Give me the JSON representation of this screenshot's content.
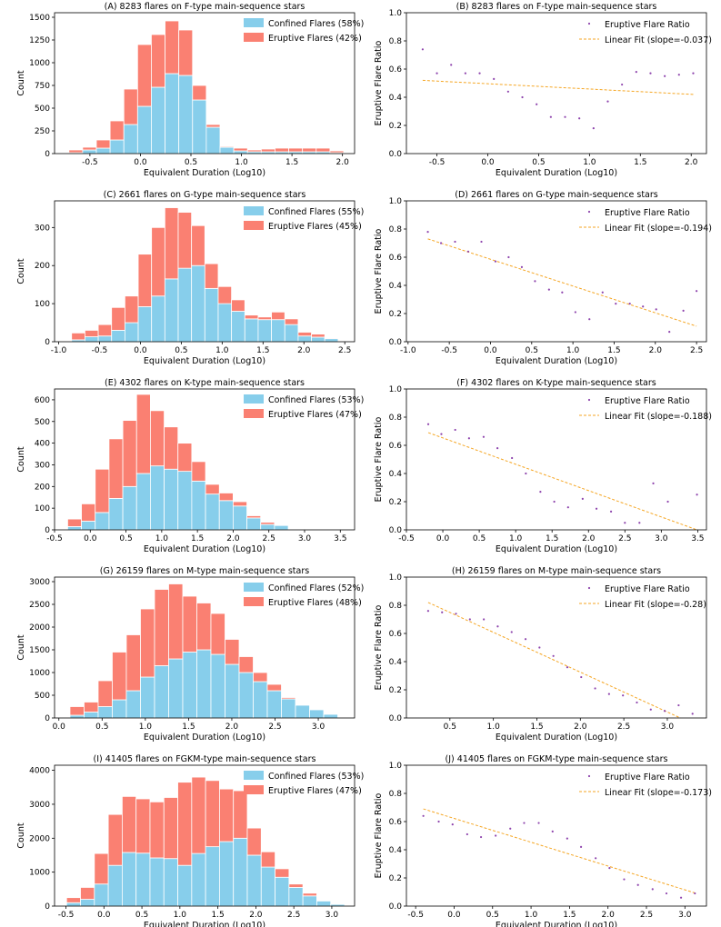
{
  "chart_data": [
    {
      "type": "bar",
      "stacked": true,
      "title": "(A) 8283 flares on F-type main-sequence stars",
      "xlabel": "Equivalent Duration (Log10)",
      "ylabel": "Count",
      "xlim": [
        -0.85,
        2.12
      ],
      "ylim": [
        0,
        1550
      ],
      "xticks": [
        -0.5,
        0.0,
        0.5,
        1.0,
        1.5,
        2.0
      ],
      "xtick_labels": [
        "-0.5",
        "0.0",
        "0.5",
        "1.0",
        "1.5",
        "2.0"
      ],
      "yticks": [
        0,
        250,
        500,
        750,
        1000,
        1250,
        1500
      ],
      "ytick_labels": [
        "0",
        "250",
        "500",
        "750",
        "1000",
        "1250",
        "1500"
      ],
      "bin_width": 0.136,
      "bin_centers": [
        -0.64,
        -0.504,
        -0.368,
        -0.232,
        -0.096,
        0.04,
        0.176,
        0.312,
        0.448,
        0.584,
        0.72,
        0.856,
        0.992,
        1.128,
        1.264,
        1.4,
        1.536,
        1.672,
        1.808,
        1.944
      ],
      "series": [
        {
          "name": "Confined Flares (58%)",
          "color": "#87CEEB",
          "values": [
            10,
            40,
            60,
            150,
            320,
            520,
            730,
            880,
            860,
            590,
            290,
            70,
            30,
            20,
            20,
            20,
            20,
            20,
            20,
            10
          ]
        },
        {
          "name": "Eruptive Flares (42%)",
          "color": "#FA8072",
          "values": [
            30,
            30,
            90,
            210,
            390,
            680,
            580,
            580,
            500,
            160,
            30,
            10,
            30,
            20,
            30,
            40,
            40,
            40,
            40,
            20
          ]
        }
      ],
      "legend": "top-right"
    },
    {
      "type": "scatter",
      "title": "(B) 8283 flares on F-type main-sequence stars",
      "xlabel": "Equivalent Duration (Log10)",
      "ylabel": "Eruptive Flare Ratio",
      "xlim": [
        -0.8,
        2.15
      ],
      "ylim": [
        0,
        1.0
      ],
      "xticks": [
        -0.5,
        0.0,
        0.5,
        1.0,
        1.5,
        2.0
      ],
      "xtick_labels": [
        "-0.5",
        "0.0",
        "0.5",
        "1.0",
        "1.5",
        "2.0"
      ],
      "yticks": [
        0,
        0.2,
        0.4,
        0.6,
        0.8,
        1.0
      ],
      "ytick_labels": [
        "0.0",
        "0.2",
        "0.4",
        "0.6",
        "0.8",
        "1.0"
      ],
      "points": {
        "x": [
          -0.64,
          -0.5,
          -0.36,
          -0.22,
          -0.08,
          0.06,
          0.2,
          0.34,
          0.48,
          0.62,
          0.76,
          0.9,
          1.04,
          1.18,
          1.32,
          1.46,
          1.6,
          1.74,
          1.88,
          2.02
        ],
        "y": [
          0.74,
          0.57,
          0.63,
          0.57,
          0.57,
          0.53,
          0.44,
          0.4,
          0.35,
          0.26,
          0.26,
          0.25,
          0.18,
          0.37,
          0.49,
          0.58,
          0.57,
          0.55,
          0.56,
          0.57
        ]
      },
      "fit": {
        "x": [
          -0.64,
          2.02
        ],
        "y": [
          0.52,
          0.42
        ]
      },
      "legend_labels": [
        "Eruptive Flare Ratio",
        "Linear Fit (slope=-0.037)"
      ],
      "legend": "top-right"
    },
    {
      "type": "bar",
      "stacked": true,
      "title": "(C) 2661 flares on G-type main-sequence stars",
      "xlabel": "Equivalent Duration (Log10)",
      "ylabel": "Count",
      "xlim": [
        -1.05,
        2.62
      ],
      "ylim": [
        0,
        370
      ],
      "xticks": [
        -1.0,
        -0.5,
        0.0,
        0.5,
        1.0,
        1.5,
        2.0,
        2.5
      ],
      "xtick_labels": [
        "-1.0",
        "-0.5",
        "0.0",
        "0.5",
        "1.0",
        "1.5",
        "2.0",
        "2.5"
      ],
      "yticks": [
        0,
        100,
        200,
        300
      ],
      "ytick_labels": [
        "0",
        "100",
        "200",
        "300"
      ],
      "bin_width": 0.163,
      "bin_centers": [
        -0.76,
        -0.597,
        -0.434,
        -0.271,
        -0.108,
        0.055,
        0.218,
        0.381,
        0.544,
        0.707,
        0.87,
        1.033,
        1.196,
        1.359,
        1.522,
        1.685,
        1.848,
        2.011,
        2.174,
        2.337
      ],
      "series": [
        {
          "name": "Confined Flares (55%)",
          "color": "#87CEEB",
          "values": [
            5,
            13,
            15,
            30,
            50,
            92,
            120,
            165,
            193,
            200,
            140,
            100,
            80,
            60,
            58,
            58,
            45,
            15,
            12,
            8
          ]
        },
        {
          "name": "Eruptive Flares (45%)",
          "color": "#FA8072",
          "values": [
            18,
            17,
            30,
            60,
            70,
            138,
            180,
            187,
            147,
            105,
            65,
            45,
            30,
            10,
            7,
            20,
            15,
            10,
            8,
            2
          ]
        }
      ],
      "legend": "top-right"
    },
    {
      "type": "scatter",
      "title": "(D) 2661 flares on G-type main-sequence stars",
      "xlabel": "Equivalent Duration (Log10)",
      "ylabel": "Eruptive Flare Ratio",
      "xlim": [
        -1.02,
        2.62
      ],
      "ylim": [
        0,
        1.0
      ],
      "xticks": [
        -1.0,
        -0.5,
        0.0,
        0.5,
        1.0,
        1.5,
        2.0,
        2.5
      ],
      "xtick_labels": [
        "-1.0",
        "-0.5",
        "0.0",
        "0.5",
        "1.0",
        "1.5",
        "2.0",
        "2.5"
      ],
      "yticks": [
        0,
        0.2,
        0.4,
        0.6,
        0.8,
        1.0
      ],
      "ytick_labels": [
        "0.0",
        "0.2",
        "0.4",
        "0.6",
        "0.8",
        "1.0"
      ],
      "points": {
        "x": [
          -0.76,
          -0.6,
          -0.43,
          -0.27,
          -0.11,
          0.06,
          0.22,
          0.38,
          0.54,
          0.71,
          0.87,
          1.03,
          1.2,
          1.36,
          1.52,
          1.69,
          1.85,
          2.01,
          2.17,
          2.34,
          2.5
        ],
        "y": [
          0.78,
          0.7,
          0.71,
          0.64,
          0.71,
          0.57,
          0.6,
          0.53,
          0.43,
          0.37,
          0.35,
          0.21,
          0.16,
          0.35,
          0.27,
          0.27,
          0.25,
          0.23,
          0.07,
          0.22,
          0.36
        ]
      },
      "fit": {
        "x": [
          -0.76,
          2.5
        ],
        "y": [
          0.73,
          0.11
        ]
      },
      "legend_labels": [
        "Eruptive Flare Ratio",
        "Linear Fit (slope=-0.194)"
      ],
      "legend": "top-right"
    },
    {
      "type": "bar",
      "stacked": true,
      "title": "(E) 4302 flares on K-type main-sequence stars",
      "xlabel": "Equivalent Duration (Log10)",
      "ylabel": "Count",
      "xlim": [
        -0.5,
        3.7
      ],
      "ylim": [
        0,
        650
      ],
      "xticks": [
        -0.5,
        0.0,
        0.5,
        1.0,
        1.5,
        2.0,
        2.5,
        3.0,
        3.5
      ],
      "xtick_labels": [
        "-0.5",
        "0.0",
        "0.5",
        "1.0",
        "1.5",
        "2.0",
        "2.5",
        "3.0",
        "3.5"
      ],
      "yticks": [
        0,
        100,
        200,
        300,
        400,
        500,
        600
      ],
      "ytick_labels": [
        "0",
        "100",
        "200",
        "300",
        "400",
        "500",
        "600"
      ],
      "bin_width": 0.193,
      "bin_centers": [
        -0.22,
        -0.027,
        0.166,
        0.359,
        0.552,
        0.745,
        0.938,
        1.131,
        1.324,
        1.517,
        1.71,
        1.903,
        2.096,
        2.289,
        2.482,
        2.675
      ],
      "series": [
        {
          "name": "Confined Flares (53%)",
          "color": "#87CEEB",
          "values": [
            15,
            40,
            80,
            145,
            200,
            260,
            295,
            280,
            270,
            225,
            165,
            135,
            110,
            55,
            25,
            20
          ]
        },
        {
          "name": "Eruptive Flares (47%)",
          "color": "#FA8072",
          "values": [
            35,
            80,
            200,
            275,
            305,
            365,
            255,
            195,
            130,
            90,
            45,
            35,
            20,
            10,
            10,
            0
          ]
        }
      ],
      "legend": "top-right"
    },
    {
      "type": "scatter",
      "title": "(F) 4302 flares on K-type main-sequence stars",
      "xlabel": "Equivalent Duration (Log10)",
      "ylabel": "Eruptive Flare Ratio",
      "xlim": [
        -0.5,
        3.62
      ],
      "ylim": [
        0,
        1.0
      ],
      "xticks": [
        -0.5,
        0.0,
        0.5,
        1.0,
        1.5,
        2.0,
        2.5,
        3.0,
        3.5
      ],
      "xtick_labels": [
        "-0.5",
        "0.0",
        "0.5",
        "1.0",
        "1.5",
        "2.0",
        "2.5",
        "3.0",
        "3.5"
      ],
      "yticks": [
        0,
        0.2,
        0.4,
        0.6,
        0.8,
        1.0
      ],
      "ytick_labels": [
        "0.0",
        "0.2",
        "0.4",
        "0.6",
        "0.8",
        "1.0"
      ],
      "points": {
        "x": [
          -0.2,
          -0.02,
          0.17,
          0.36,
          0.56,
          0.75,
          0.95,
          1.14,
          1.34,
          1.53,
          1.72,
          1.92,
          2.11,
          2.31,
          2.5,
          2.7,
          2.89,
          3.09,
          3.49
        ],
        "y": [
          0.75,
          0.68,
          0.71,
          0.65,
          0.66,
          0.58,
          0.51,
          0.4,
          0.27,
          0.2,
          0.16,
          0.22,
          0.15,
          0.13,
          0.05,
          0.05,
          0.33,
          0.2,
          0.25
        ]
      },
      "fit": {
        "x": [
          -0.2,
          3.49
        ],
        "y": [
          0.69,
          0.0
        ]
      },
      "legend_labels": [
        "Eruptive Flare Ratio",
        "Linear Fit (slope=-0.188)"
      ],
      "legend": "top-right"
    },
    {
      "type": "bar",
      "stacked": true,
      "title": "(G) 26159 flares on M-type main-sequence stars",
      "xlabel": "Equivalent Duration (Log10)",
      "ylabel": "Count",
      "xlim": [
        -0.05,
        3.42
      ],
      "ylim": [
        0,
        3100
      ],
      "xticks": [
        0.0,
        0.5,
        1.0,
        1.5,
        2.0,
        2.5,
        3.0
      ],
      "xtick_labels": [
        "0.0",
        "0.5",
        "1.0",
        "1.5",
        "2.0",
        "2.5",
        "3.0"
      ],
      "yticks": [
        0,
        500,
        1000,
        1500,
        2000,
        2500,
        3000
      ],
      "ytick_labels": [
        "0",
        "500",
        "1000",
        "1500",
        "2000",
        "2500",
        "3000"
      ],
      "bin_width": 0.163,
      "bin_centers": [
        0.21,
        0.373,
        0.536,
        0.699,
        0.862,
        1.025,
        1.188,
        1.351,
        1.514,
        1.677,
        1.84,
        2.003,
        2.166,
        2.329,
        2.492,
        2.655,
        2.818,
        2.981,
        3.144
      ],
      "series": [
        {
          "name": "Confined Flares (52%)",
          "color": "#87CEEB",
          "values": [
            60,
            130,
            250,
            400,
            600,
            900,
            1150,
            1300,
            1450,
            1500,
            1400,
            1180,
            1000,
            800,
            600,
            420,
            280,
            180,
            80
          ]
        },
        {
          "name": "Eruptive Flares (48%)",
          "color": "#FA8072",
          "values": [
            190,
            220,
            570,
            1050,
            1230,
            1500,
            1680,
            1650,
            1230,
            1030,
            900,
            550,
            350,
            200,
            140,
            30,
            0,
            0,
            0
          ]
        }
      ],
      "legend": "top-right"
    },
    {
      "type": "scatter",
      "title": "(H) 26159 flares on M-type main-sequence stars",
      "xlabel": "Equivalent Duration (Log10)",
      "ylabel": "Eruptive Flare Ratio",
      "xlim": [
        0.0,
        3.45
      ],
      "ylim": [
        0,
        1.0
      ],
      "xticks": [
        0.5,
        1.0,
        1.5,
        2.0,
        2.5,
        3.0
      ],
      "xtick_labels": [
        "0.5",
        "1.0",
        "1.5",
        "2.0",
        "2.5",
        "3.0"
      ],
      "yticks": [
        0,
        0.2,
        0.4,
        0.6,
        0.8,
        1.0
      ],
      "ytick_labels": [
        "0.0",
        "0.2",
        "0.4",
        "0.6",
        "0.8",
        "1.0"
      ],
      "points": {
        "x": [
          0.25,
          0.41,
          0.57,
          0.73,
          0.89,
          1.05,
          1.21,
          1.37,
          1.53,
          1.69,
          1.85,
          2.01,
          2.17,
          2.33,
          2.49,
          2.65,
          2.81,
          2.97,
          3.13,
          3.29
        ],
        "y": [
          0.76,
          0.75,
          0.74,
          0.7,
          0.7,
          0.65,
          0.61,
          0.56,
          0.5,
          0.44,
          0.36,
          0.29,
          0.21,
          0.17,
          0.16,
          0.11,
          0.06,
          0.05,
          0.09,
          0.03
        ]
      },
      "fit": {
        "x": [
          0.25,
          3.15
        ],
        "y": [
          0.82,
          0.0
        ]
      },
      "legend_labels": [
        "Eruptive Flare Ratio",
        "Linear Fit (slope=-0.28)"
      ],
      "legend": "top-right"
    },
    {
      "type": "bar",
      "stacked": true,
      "title": "(I) 41405 flares on FGKM-type main-sequence stars",
      "xlabel": "Equivalent Duration (Log10)",
      "ylabel": "Count",
      "xlim": [
        -0.65,
        3.3
      ],
      "ylim": [
        0,
        4150
      ],
      "xticks": [
        -0.5,
        0.0,
        0.5,
        1.0,
        1.5,
        2.0,
        2.5,
        3.0
      ],
      "xtick_labels": [
        "-0.5",
        "0.0",
        "0.5",
        "1.0",
        "1.5",
        "2.0",
        "2.5",
        "3.0"
      ],
      "yticks": [
        0,
        1000,
        2000,
        3000,
        4000
      ],
      "ytick_labels": [
        "0",
        "1000",
        "2000",
        "3000",
        "4000"
      ],
      "bin_width": 0.183,
      "bin_centers": [
        -0.4,
        -0.217,
        -0.034,
        0.149,
        0.332,
        0.515,
        0.698,
        0.881,
        1.064,
        1.247,
        1.43,
        1.613,
        1.796,
        1.979,
        2.162,
        2.345,
        2.528,
        2.711,
        2.894,
        3.077
      ],
      "series": [
        {
          "name": "Confined Flares (53%)",
          "color": "#87CEEB",
          "values": [
            100,
            200,
            650,
            1200,
            1580,
            1560,
            1420,
            1400,
            1200,
            1550,
            1750,
            1900,
            2000,
            1500,
            1150,
            850,
            550,
            300,
            150,
            50
          ]
        },
        {
          "name": "Eruptive Flares (47%)",
          "color": "#FA8072",
          "values": [
            150,
            350,
            900,
            1500,
            1650,
            1600,
            1650,
            1800,
            2450,
            2250,
            1950,
            1550,
            1400,
            800,
            450,
            250,
            100,
            80,
            0,
            0
          ]
        }
      ],
      "legend": "top-right"
    },
    {
      "type": "scatter",
      "title": "(J) 41405 flares on FGKM-type main-sequence stars",
      "xlabel": "Equivalent Duration (Log10)",
      "ylabel": "Eruptive Flare Ratio",
      "xlim": [
        -0.62,
        3.28
      ],
      "ylim": [
        0,
        1.0
      ],
      "xticks": [
        -0.5,
        0.0,
        0.5,
        1.0,
        1.5,
        2.0,
        2.5,
        3.0
      ],
      "xtick_labels": [
        "-0.5",
        "0.0",
        "0.5",
        "1.0",
        "1.5",
        "2.0",
        "2.5",
        "3.0"
      ],
      "yticks": [
        0,
        0.2,
        0.4,
        0.6,
        0.8,
        1.0
      ],
      "ytick_labels": [
        "0.0",
        "0.2",
        "0.4",
        "0.6",
        "0.8",
        "1.0"
      ],
      "points": {
        "x": [
          -0.4,
          -0.2,
          -0.02,
          0.17,
          0.35,
          0.54,
          0.73,
          0.91,
          1.1,
          1.28,
          1.47,
          1.65,
          1.84,
          2.02,
          2.21,
          2.39,
          2.58,
          2.76,
          2.95,
          3.13
        ],
        "y": [
          0.64,
          0.6,
          0.58,
          0.51,
          0.49,
          0.5,
          0.55,
          0.59,
          0.59,
          0.53,
          0.48,
          0.42,
          0.34,
          0.27,
          0.19,
          0.15,
          0.12,
          0.09,
          0.06,
          0.09
        ]
      },
      "fit": {
        "x": [
          -0.4,
          3.15
        ],
        "y": [
          0.69,
          0.09
        ]
      },
      "legend_labels": [
        "Eruptive Flare Ratio",
        "Linear Fit (slope=-0.173)"
      ],
      "legend": "top-right"
    }
  ]
}
